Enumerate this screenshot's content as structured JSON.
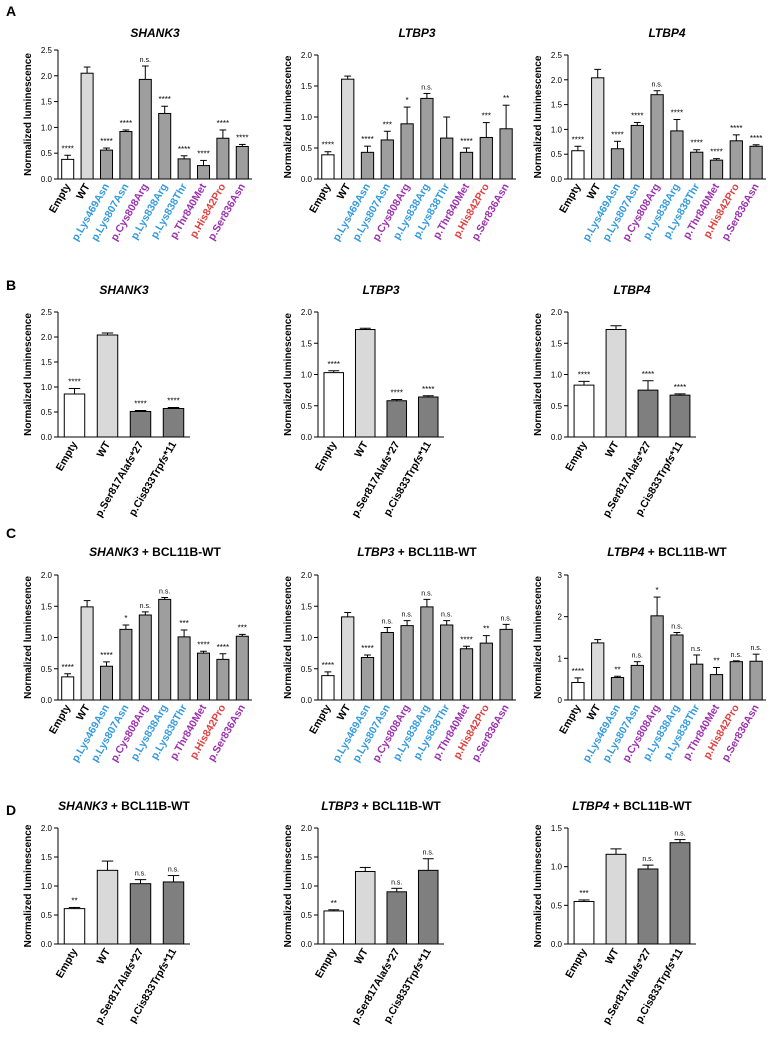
{
  "panel_labels": [
    "A",
    "B",
    "C",
    "D"
  ],
  "colors": {
    "empty": "#ffffff",
    "wt": "#d9d9d9",
    "variant": "#9e9e9e",
    "frameshift": "#7f7f7f",
    "black": "#000000",
    "blue": "#3399dd",
    "purple": "#9b2fae",
    "red": "#e04040"
  },
  "chart_data": [
    {
      "panel": "A",
      "type": "bar",
      "gene": "SHANK3",
      "title_suffix": "",
      "ylabel": "Normalized luminescence",
      "ylim": [
        0,
        2.5
      ],
      "yticks": [
        "0.0",
        "0.5",
        "1.0",
        "1.5",
        "2.0",
        "2.5"
      ],
      "categories": [
        "Empty",
        "WT",
        "p.Lys469Asn",
        "p.Lys807Asn",
        "p.Cys808Arg",
        "p.Lys838Arg",
        "p.Lys838Thr",
        "p.Thr840Met",
        "p.His842Pro",
        "p.Ser836Asn"
      ],
      "label_colors": [
        "black",
        "black",
        "blue",
        "blue",
        "purple",
        "blue",
        "blue",
        "purple",
        "red",
        "purple"
      ],
      "bar_kinds": [
        "empty",
        "wt",
        "variant",
        "variant",
        "variant",
        "variant",
        "variant",
        "variant",
        "variant",
        "variant"
      ],
      "values": [
        0.38,
        2.05,
        0.56,
        0.92,
        1.93,
        1.27,
        0.39,
        0.26,
        0.79,
        0.63
      ],
      "errors": [
        0.08,
        0.12,
        0.04,
        0.03,
        0.26,
        0.14,
        0.06,
        0.1,
        0.16,
        0.04
      ],
      "significance": [
        "****",
        "",
        "****",
        "****",
        "n.s.",
        "****",
        "****",
        "****",
        "****",
        "****"
      ]
    },
    {
      "panel": "A",
      "type": "bar",
      "gene": "LTBP3",
      "title_suffix": "",
      "ylabel": "Normalized luminescence",
      "ylim": [
        0,
        2.0
      ],
      "yticks": [
        "0.0",
        "0.5",
        "1.0",
        "1.5",
        "2.0"
      ],
      "categories": [
        "Empty",
        "WT",
        "p.Lys469Asn",
        "p.Lys807Asn",
        "p.Cys808Arg",
        "p.Lys838Arg",
        "p.Lys838Thr",
        "p.Thr840Met",
        "p.His842Pro",
        "p.Ser836Asn"
      ],
      "label_colors": [
        "black",
        "black",
        "blue",
        "blue",
        "purple",
        "blue",
        "blue",
        "purple",
        "red",
        "purple"
      ],
      "bar_kinds": [
        "empty",
        "wt",
        "variant",
        "variant",
        "variant",
        "variant",
        "variant",
        "variant",
        "variant",
        "variant"
      ],
      "values": [
        0.39,
        1.61,
        0.43,
        0.63,
        0.89,
        1.3,
        0.66,
        0.43,
        0.67,
        0.81
      ],
      "errors": [
        0.05,
        0.05,
        0.1,
        0.14,
        0.27,
        0.08,
        0.34,
        0.07,
        0.24,
        0.38
      ],
      "significance": [
        "****",
        "",
        "****",
        "***",
        "*",
        "n.s.",
        "",
        "****",
        "***",
        "**"
      ]
    },
    {
      "panel": "A",
      "type": "bar",
      "gene": "LTBP4",
      "title_suffix": "",
      "ylabel": "Normalized luminescence",
      "ylim": [
        0,
        2.5
      ],
      "yticks": [
        "0.0",
        "0.5",
        "1.0",
        "1.5",
        "2.0",
        "2.5"
      ],
      "categories": [
        "Empty",
        "WT",
        "p.Lys469Asn",
        "p.Lys807Asn",
        "p.Cys808Arg",
        "p.Lys838Arg",
        "p.Lys838Thr",
        "p.Thr840Met",
        "p.His842Pro",
        "p.Ser836Asn"
      ],
      "label_colors": [
        "black",
        "black",
        "blue",
        "blue",
        "purple",
        "blue",
        "blue",
        "purple",
        "red",
        "purple"
      ],
      "bar_kinds": [
        "empty",
        "wt",
        "variant",
        "variant",
        "variant",
        "variant",
        "variant",
        "variant",
        "variant",
        "variant"
      ],
      "values": [
        0.57,
        2.04,
        0.61,
        1.08,
        1.7,
        0.97,
        0.54,
        0.38,
        0.77,
        0.66
      ],
      "errors": [
        0.09,
        0.17,
        0.15,
        0.06,
        0.08,
        0.23,
        0.05,
        0.03,
        0.12,
        0.03
      ],
      "significance": [
        "****",
        "",
        "****",
        "****",
        "n.s.",
        "****",
        "****",
        "****",
        "****",
        "****"
      ]
    },
    {
      "panel": "B",
      "type": "bar",
      "gene": "SHANK3",
      "title_suffix": "",
      "ylabel": "Normalized luminescence",
      "ylim": [
        0,
        2.5
      ],
      "yticks": [
        "0.0",
        "0.5",
        "1.0",
        "1.5",
        "2.0",
        "2.5"
      ],
      "categories": [
        "Empty",
        "WT",
        "p.Ser817Alafs*27",
        "p.Cis833Trpfs*11"
      ],
      "label_colors": [
        "black",
        "black",
        "black",
        "black"
      ],
      "bar_kinds": [
        "empty",
        "wt",
        "frameshift",
        "frameshift"
      ],
      "values": [
        0.86,
        2.04,
        0.51,
        0.57
      ],
      "errors": [
        0.11,
        0.04,
        0.02,
        0.02
      ],
      "significance": [
        "****",
        "",
        "****",
        "****"
      ]
    },
    {
      "panel": "B",
      "type": "bar",
      "gene": "LTBP3",
      "title_suffix": "",
      "ylabel": "Normalized luminescence",
      "ylim": [
        0,
        2.0
      ],
      "yticks": [
        "0.0",
        "0.5",
        "1.0",
        "1.5",
        "2.0"
      ],
      "categories": [
        "Empty",
        "WT",
        "p.Ser817Alafs*27",
        "p.Cis833Trpfs*11"
      ],
      "label_colors": [
        "black",
        "black",
        "black",
        "black"
      ],
      "bar_kinds": [
        "empty",
        "wt",
        "frameshift",
        "frameshift"
      ],
      "values": [
        1.03,
        1.72,
        0.58,
        0.64
      ],
      "errors": [
        0.03,
        0.02,
        0.02,
        0.02
      ],
      "significance": [
        "****",
        "",
        "****",
        "****"
      ]
    },
    {
      "panel": "B",
      "type": "bar",
      "gene": "LTBP4",
      "title_suffix": "",
      "ylabel": "Normalized luminescence",
      "ylim": [
        0,
        2.0
      ],
      "yticks": [
        "0.0",
        "0.5",
        "1.0",
        "1.5",
        "2.0"
      ],
      "categories": [
        "Empty",
        "WT",
        "p.Ser817Alafs*27",
        "p.Cis833Trpfs*11"
      ],
      "label_colors": [
        "black",
        "black",
        "black",
        "black"
      ],
      "bar_kinds": [
        "empty",
        "wt",
        "frameshift",
        "frameshift"
      ],
      "values": [
        0.83,
        1.72,
        0.75,
        0.67
      ],
      "errors": [
        0.06,
        0.06,
        0.15,
        0.02
      ],
      "significance": [
        "****",
        "",
        "****",
        "****"
      ]
    },
    {
      "panel": "C",
      "type": "bar",
      "gene": "SHANK3",
      "title_suffix": " + BCL11B-WT",
      "ylabel": "Normalized luminescence",
      "ylim": [
        0,
        2.0
      ],
      "yticks": [
        "0.0",
        "0.5",
        "1.0",
        "1.5",
        "2.0"
      ],
      "categories": [
        "Empty",
        "WT",
        "p.Lys469Asn",
        "p.Lys807Asn",
        "p.Cys808Arg",
        "p.Lys838Arg",
        "p.Lys838Thr",
        "p.Thr840Met",
        "p.His842Pro",
        "p.Ser836Asn"
      ],
      "label_colors": [
        "black",
        "black",
        "blue",
        "blue",
        "purple",
        "blue",
        "blue",
        "purple",
        "red",
        "purple"
      ],
      "bar_kinds": [
        "empty",
        "wt",
        "variant",
        "variant",
        "variant",
        "variant",
        "variant",
        "variant",
        "variant",
        "variant"
      ],
      "values": [
        0.37,
        1.49,
        0.54,
        1.13,
        1.36,
        1.61,
        1.01,
        0.75,
        0.65,
        1.02
      ],
      "errors": [
        0.05,
        0.1,
        0.07,
        0.07,
        0.05,
        0.03,
        0.11,
        0.03,
        0.09,
        0.03
      ],
      "significance": [
        "****",
        "",
        "****",
        "*",
        "n.s.",
        "n.s.",
        "***",
        "****",
        "****",
        "***"
      ]
    },
    {
      "panel": "C",
      "type": "bar",
      "gene": "LTBP3",
      "title_suffix": " + BCL11B-WT",
      "ylabel": "Normalized luminescence",
      "ylim": [
        0,
        2.0
      ],
      "yticks": [
        "0.0",
        "0.5",
        "1.0",
        "1.5",
        "2.0"
      ],
      "categories": [
        "Empty",
        "WT",
        "p.Lys469Asn",
        "p.Lys807Asn",
        "p.Cys808Arg",
        "p.Lys838Arg",
        "p.Lys838Thr",
        "p.Thr840Met",
        "p.His842Pro",
        "p.Ser836Asn"
      ],
      "label_colors": [
        "black",
        "black",
        "blue",
        "blue",
        "purple",
        "blue",
        "blue",
        "purple",
        "red",
        "purple"
      ],
      "bar_kinds": [
        "empty",
        "wt",
        "variant",
        "variant",
        "variant",
        "variant",
        "variant",
        "variant",
        "variant",
        "variant"
      ],
      "values": [
        0.39,
        1.33,
        0.68,
        1.08,
        1.19,
        1.49,
        1.2,
        0.82,
        0.91,
        1.13
      ],
      "errors": [
        0.06,
        0.07,
        0.04,
        0.08,
        0.08,
        0.12,
        0.07,
        0.04,
        0.12,
        0.08
      ],
      "significance": [
        "****",
        "",
        "****",
        "n.s.",
        "n.s.",
        "n.s.",
        "n.s.",
        "****",
        "**",
        "n.s."
      ]
    },
    {
      "panel": "C",
      "type": "bar",
      "gene": "LTBP4",
      "title_suffix": " + BCL11B-WT",
      "ylabel": "Normalized luminescence",
      "ylim": [
        0,
        3
      ],
      "yticks": [
        "0",
        "1",
        "2",
        "3"
      ],
      "categories": [
        "Empty",
        "WT",
        "p.Lys469Asn",
        "p.Lys807Asn",
        "p.Cys808Arg",
        "p.Lys838Arg",
        "p.Lys838Thr",
        "p.Thr840Met",
        "p.His842Pro",
        "p.Ser836Asn"
      ],
      "label_colors": [
        "black",
        "black",
        "blue",
        "blue",
        "purple",
        "blue",
        "blue",
        "purple",
        "red",
        "purple"
      ],
      "bar_kinds": [
        "empty",
        "wt",
        "variant",
        "variant",
        "variant",
        "variant",
        "variant",
        "variant",
        "variant",
        "variant"
      ],
      "values": [
        0.42,
        1.37,
        0.54,
        0.83,
        2.02,
        1.56,
        0.86,
        0.61,
        0.92,
        0.93
      ],
      "errors": [
        0.11,
        0.08,
        0.03,
        0.09,
        0.45,
        0.06,
        0.22,
        0.17,
        0.02,
        0.17
      ],
      "significance": [
        "****",
        "",
        "**",
        "n.s.",
        "*",
        "n.s.",
        "n.s.",
        "**",
        "n.s.",
        "n.s."
      ]
    },
    {
      "panel": "D",
      "type": "bar",
      "gene": "SHANK3",
      "title_suffix": " + BCL11B-WT",
      "ylabel": "Normalized luminescence",
      "ylim": [
        0,
        2.0
      ],
      "yticks": [
        "0.0",
        "0.5",
        "1.0",
        "1.5",
        "2.0"
      ],
      "categories": [
        "Empty",
        "WT",
        "p.Ser817Alafs*27",
        "p.Cis833Trpfs*11"
      ],
      "label_colors": [
        "black",
        "black",
        "black",
        "black"
      ],
      "bar_kinds": [
        "empty",
        "wt",
        "frameshift",
        "frameshift"
      ],
      "values": [
        0.61,
        1.27,
        1.04,
        1.07
      ],
      "errors": [
        0.02,
        0.16,
        0.07,
        0.11
      ],
      "significance": [
        "**",
        "",
        "n.s.",
        "n.s."
      ]
    },
    {
      "panel": "D",
      "type": "bar",
      "gene": "LTBP3",
      "title_suffix": " + BCL11B-WT",
      "ylabel": "Normalized luminescence",
      "ylim": [
        0,
        2.0
      ],
      "yticks": [
        "0.0",
        "0.5",
        "1.0",
        "1.5",
        "2.0"
      ],
      "categories": [
        "Empty",
        "WT",
        "p.Ser817Alafs*27",
        "p.Cis833Trpfs*11"
      ],
      "label_colors": [
        "black",
        "black",
        "black",
        "black"
      ],
      "bar_kinds": [
        "empty",
        "wt",
        "frameshift",
        "frameshift"
      ],
      "values": [
        0.57,
        1.25,
        0.9,
        1.27
      ],
      "errors": [
        0.02,
        0.07,
        0.06,
        0.2
      ],
      "significance": [
        "**",
        "",
        "n.s.",
        "n.s."
      ]
    },
    {
      "panel": "D",
      "type": "bar",
      "gene": "LTBP4",
      "title_suffix": " + BCL11B-WT",
      "ylabel": "Normalized luminescence",
      "ylim": [
        0,
        1.5
      ],
      "yticks": [
        "0.0",
        "0.5",
        "1.0",
        "1.5"
      ],
      "categories": [
        "Empty",
        "WT",
        "p.Ser817Alafs*27",
        "p.Cis833Trpfs*11"
      ],
      "label_colors": [
        "black",
        "black",
        "black",
        "black"
      ],
      "bar_kinds": [
        "empty",
        "wt",
        "frameshift",
        "frameshift"
      ],
      "values": [
        0.55,
        1.16,
        0.97,
        1.31
      ],
      "errors": [
        0.02,
        0.07,
        0.05,
        0.04
      ],
      "significance": [
        "***",
        "",
        "n.s.",
        "n.s."
      ]
    }
  ]
}
